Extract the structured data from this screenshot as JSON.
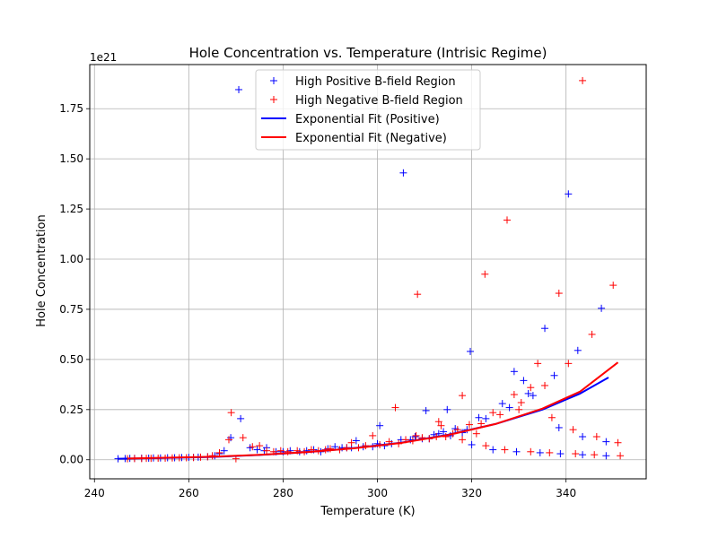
{
  "chart_data": {
    "type": "scatter",
    "title": "Hole Concentration vs. Temperature (Intrisic Regime)",
    "xlabel": "Temperature (K)",
    "ylabel": "Hole Concentration",
    "y_offset_text": "1e21",
    "xlim": [
      239,
      357
    ],
    "ylim": [
      -0.095,
      1.97
    ],
    "x_ticks": [
      240,
      260,
      280,
      300,
      320,
      340
    ],
    "x_tick_labels": [
      "240",
      "260",
      "280",
      "300",
      "320",
      "340"
    ],
    "y_ticks": [
      0.0,
      0.25,
      0.5,
      0.75,
      1.0,
      1.25,
      1.5,
      1.75
    ],
    "y_tick_labels": [
      "0.00",
      "0.25",
      "0.50",
      "0.75",
      "1.00",
      "1.25",
      "1.50",
      "1.75"
    ],
    "grid": true,
    "legend_position": "upper-center",
    "colors": {
      "positive": "#0000ff",
      "negative": "#ff0000",
      "grid": "#b0b0b0"
    },
    "series": [
      {
        "name": "High Positive B-field Region",
        "kind": "scatter",
        "marker": "plus",
        "color": "#0000ff",
        "points": [
          [
            245.0,
            0.005
          ],
          [
            246.5,
            0.006
          ],
          [
            247.5,
            0.007
          ],
          [
            248.5,
            0.007
          ],
          [
            250.0,
            0.008
          ],
          [
            251.5,
            0.008
          ],
          [
            252.5,
            0.009
          ],
          [
            254.0,
            0.009
          ],
          [
            255.5,
            0.01
          ],
          [
            257.0,
            0.01
          ],
          [
            258.5,
            0.011
          ],
          [
            260.0,
            0.012
          ],
          [
            261.0,
            0.012
          ],
          [
            262.0,
            0.013
          ],
          [
            264.0,
            0.015
          ],
          [
            265.5,
            0.02
          ],
          [
            266.5,
            0.03
          ],
          [
            267.5,
            0.045
          ],
          [
            268.9,
            0.11
          ],
          [
            270.6,
            1.845
          ],
          [
            271.0,
            0.205
          ],
          [
            273.0,
            0.06
          ],
          [
            274.5,
            0.05
          ],
          [
            276.0,
            0.045
          ],
          [
            276.5,
            0.06
          ],
          [
            278.5,
            0.04
          ],
          [
            280.0,
            0.04
          ],
          [
            281.5,
            0.045
          ],
          [
            283.5,
            0.04
          ],
          [
            285.0,
            0.045
          ],
          [
            286.5,
            0.05
          ],
          [
            288.0,
            0.04
          ],
          [
            289.5,
            0.055
          ],
          [
            291.0,
            0.065
          ],
          [
            292.5,
            0.06
          ],
          [
            293.5,
            0.06
          ],
          [
            294.5,
            0.06
          ],
          [
            295.5,
            0.095
          ],
          [
            297.0,
            0.065
          ],
          [
            299.0,
            0.065
          ],
          [
            300.5,
            0.17
          ],
          [
            300.0,
            0.08
          ],
          [
            301.5,
            0.07
          ],
          [
            303.0,
            0.08
          ],
          [
            305.0,
            0.1
          ],
          [
            305.5,
            1.43
          ],
          [
            307.0,
            0.1
          ],
          [
            308.0,
            0.115
          ],
          [
            309.5,
            0.105
          ],
          [
            310.3,
            0.245
          ],
          [
            311.0,
            0.105
          ],
          [
            312.0,
            0.125
          ],
          [
            313.0,
            0.13
          ],
          [
            314.0,
            0.14
          ],
          [
            314.8,
            0.25
          ],
          [
            315.5,
            0.12
          ],
          [
            316.5,
            0.155
          ],
          [
            318.0,
            0.135
          ],
          [
            319.0,
            0.15
          ],
          [
            319.7,
            0.54
          ],
          [
            320.0,
            0.075
          ],
          [
            321.5,
            0.21
          ],
          [
            323.0,
            0.205
          ],
          [
            324.5,
            0.05
          ],
          [
            326.5,
            0.28
          ],
          [
            328.0,
            0.26
          ],
          [
            329.0,
            0.44
          ],
          [
            329.5,
            0.04
          ],
          [
            331.0,
            0.395
          ],
          [
            332.0,
            0.33
          ],
          [
            333.0,
            0.32
          ],
          [
            334.5,
            0.035
          ],
          [
            335.5,
            0.655
          ],
          [
            337.5,
            0.42
          ],
          [
            338.8,
            0.03
          ],
          [
            338.5,
            0.16
          ],
          [
            340.5,
            1.325
          ],
          [
            342.5,
            0.545
          ],
          [
            343.5,
            0.115
          ],
          [
            343.5,
            0.025
          ],
          [
            347.5,
            0.755
          ],
          [
            348.5,
            0.09
          ],
          [
            348.5,
            0.02
          ]
        ]
      },
      {
        "name": "High Negative B-field Region",
        "kind": "scatter",
        "marker": "plus",
        "color": "#ff0000",
        "points": [
          [
            247.0,
            0.005
          ],
          [
            248.5,
            0.006
          ],
          [
            250.0,
            0.006
          ],
          [
            251.0,
            0.007
          ],
          [
            252.0,
            0.007
          ],
          [
            253.5,
            0.008
          ],
          [
            255.0,
            0.008
          ],
          [
            256.5,
            0.009
          ],
          [
            258.0,
            0.01
          ],
          [
            259.5,
            0.01
          ],
          [
            261.0,
            0.011
          ],
          [
            262.5,
            0.013
          ],
          [
            264.0,
            0.015
          ],
          [
            265.0,
            0.02
          ],
          [
            266.5,
            0.035
          ],
          [
            268.5,
            0.1
          ],
          [
            269.0,
            0.235
          ],
          [
            270.0,
            0.005
          ],
          [
            271.5,
            0.11
          ],
          [
            273.5,
            0.065
          ],
          [
            275.0,
            0.07
          ],
          [
            276.5,
            0.045
          ],
          [
            278.0,
            0.04
          ],
          [
            279.5,
            0.045
          ],
          [
            281.0,
            0.04
          ],
          [
            283.0,
            0.045
          ],
          [
            284.5,
            0.04
          ],
          [
            286.0,
            0.05
          ],
          [
            287.5,
            0.045
          ],
          [
            289.0,
            0.05
          ],
          [
            290.0,
            0.055
          ],
          [
            292.0,
            0.05
          ],
          [
            293.5,
            0.06
          ],
          [
            294.5,
            0.085
          ],
          [
            296.0,
            0.06
          ],
          [
            297.5,
            0.07
          ],
          [
            299.0,
            0.12
          ],
          [
            300.5,
            0.075
          ],
          [
            302.5,
            0.09
          ],
          [
            303.8,
            0.26
          ],
          [
            304.5,
            0.08
          ],
          [
            306.0,
            0.1
          ],
          [
            307.5,
            0.095
          ],
          [
            308.2,
            0.12
          ],
          [
            308.5,
            0.825
          ],
          [
            309.5,
            0.11
          ],
          [
            311.0,
            0.105
          ],
          [
            312.5,
            0.115
          ],
          [
            313.0,
            0.19
          ],
          [
            313.5,
            0.17
          ],
          [
            314.5,
            0.115
          ],
          [
            316.0,
            0.13
          ],
          [
            317.0,
            0.15
          ],
          [
            318.0,
            0.32
          ],
          [
            318.0,
            0.1
          ],
          [
            319.5,
            0.175
          ],
          [
            321.0,
            0.13
          ],
          [
            322.0,
            0.18
          ],
          [
            322.8,
            0.925
          ],
          [
            323.0,
            0.07
          ],
          [
            324.5,
            0.235
          ],
          [
            326.0,
            0.225
          ],
          [
            327.0,
            0.05
          ],
          [
            327.5,
            1.195
          ],
          [
            329.0,
            0.325
          ],
          [
            330.0,
            0.25
          ],
          [
            330.5,
            0.285
          ],
          [
            332.5,
            0.04
          ],
          [
            332.5,
            0.36
          ],
          [
            334.0,
            0.48
          ],
          [
            335.5,
            0.37
          ],
          [
            336.5,
            0.035
          ],
          [
            337.0,
            0.21
          ],
          [
            338.5,
            0.83
          ],
          [
            340.5,
            0.48
          ],
          [
            341.5,
            0.15
          ],
          [
            342.0,
            0.03
          ],
          [
            343.5,
            1.89
          ],
          [
            345.5,
            0.625
          ],
          [
            346.0,
            0.025
          ],
          [
            346.5,
            0.115
          ],
          [
            350.0,
            0.87
          ],
          [
            351.0,
            0.085
          ],
          [
            351.5,
            0.02
          ]
        ]
      },
      {
        "name": "Exponential Fit (Positive)",
        "kind": "line",
        "color": "#0000ff",
        "x": [
          245,
          255,
          265,
          275,
          285,
          295,
          305,
          315,
          325,
          335,
          343,
          349
        ],
        "y": [
          0.005,
          0.009,
          0.014,
          0.024,
          0.038,
          0.058,
          0.085,
          0.125,
          0.178,
          0.25,
          0.33,
          0.41
        ]
      },
      {
        "name": "Exponential Fit (Negative)",
        "kind": "line",
        "color": "#ff0000",
        "x": [
          247,
          255,
          265,
          275,
          285,
          295,
          305,
          315,
          325,
          335,
          343,
          351
        ],
        "y": [
          0.006,
          0.01,
          0.015,
          0.025,
          0.038,
          0.057,
          0.084,
          0.123,
          0.178,
          0.255,
          0.34,
          0.485
        ]
      }
    ]
  }
}
